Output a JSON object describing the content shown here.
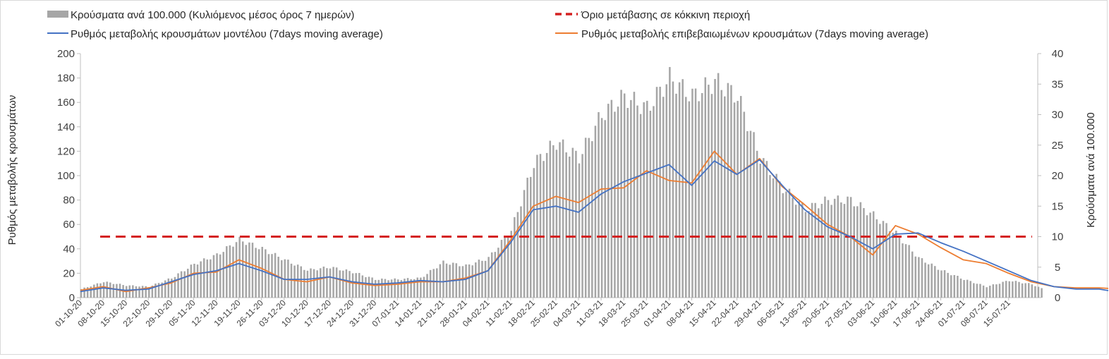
{
  "chart_data": {
    "type": "bar+line",
    "title": "",
    "left_axis": {
      "label": "Ρυθμός μεταβολής κρουσμάτων",
      "ylim": [
        0,
        200
      ],
      "ticks": [
        0,
        20,
        40,
        60,
        80,
        100,
        120,
        140,
        160,
        180,
        200
      ]
    },
    "right_axis": {
      "label": "Κρούσματα ανά 100.000",
      "ylim": [
        0,
        40
      ],
      "ticks": [
        0,
        5,
        10,
        15,
        20,
        25,
        30,
        35,
        40
      ]
    },
    "x_tick_labels": [
      "01-10-20",
      "08-10-20",
      "15-10-20",
      "22-10-20",
      "29-10-20",
      "05-11-20",
      "12-11-20",
      "19-11-20",
      "26-11-20",
      "03-12-20",
      "10-12-20",
      "17-12-20",
      "24-12-20",
      "31-12-20",
      "07-01-21",
      "14-01-21",
      "21-01-21",
      "28-01-21",
      "04-02-21",
      "11-02-21",
      "18-02-21",
      "25-02-21",
      "04-03-21",
      "11-03-21",
      "18-03-21",
      "25-03-21",
      "01-04-21",
      "08-04-21",
      "15-04-21",
      "22-04-21",
      "29-04-21",
      "06-05-21",
      "13-05-21",
      "20-05-21",
      "27-05-21",
      "03-06-21",
      "10-06-21",
      "17-06-21",
      "24-06-21",
      "01-07-21",
      "08-07-21",
      "15-07-21"
    ],
    "series_x_unit": "days since 01-10-20",
    "legend": {
      "bars": "Κρούσματα ανά 100.000 (Κυλιόμενος μέσος όρος 7 ημερών)",
      "threshold": "Όριο μετάβασης σε κόκκινη περιοχή",
      "model": "Ρυθμός μεταβολής κρουσμάτων μοντέλου (7days moving average)",
      "confirmed": "Ρυθμός μεταβολής επιβεβαιωμένων κρουσμάτων (7days moving average)"
    },
    "colors": {
      "bars": "#a6a6a6",
      "threshold": "#d42020",
      "model": "#4472c4",
      "confirmed": "#ed7d31"
    },
    "threshold_value": 50,
    "bars_series": {
      "name": "Κρούσματα ανά 100.000 (Κυλιόμενος μέσος όρος 7 ημερών)",
      "axis": "right",
      "points": [
        [
          0,
          1.4
        ],
        [
          7,
          2.6
        ],
        [
          14,
          2.0
        ],
        [
          21,
          1.8
        ],
        [
          28,
          3.2
        ],
        [
          35,
          5.5
        ],
        [
          42,
          7.0
        ],
        [
          49,
          9.5
        ],
        [
          56,
          8.0
        ],
        [
          63,
          6.2
        ],
        [
          70,
          4.5
        ],
        [
          77,
          5.0
        ],
        [
          84,
          4.2
        ],
        [
          91,
          3.0
        ],
        [
          98,
          3.0
        ],
        [
          105,
          3.2
        ],
        [
          112,
          5.8
        ],
        [
          119,
          5.2
        ],
        [
          126,
          6.5
        ],
        [
          133,
          11.0
        ],
        [
          140,
          22.0
        ],
        [
          147,
          25.5
        ],
        [
          154,
          23.0
        ],
        [
          161,
          30.0
        ],
        [
          168,
          33.0
        ],
        [
          175,
          31.0
        ],
        [
          182,
          36.0
        ],
        [
          189,
          33.0
        ],
        [
          196,
          35.5
        ],
        [
          203,
          33.0
        ],
        [
          210,
          23.0
        ],
        [
          217,
          18.0
        ],
        [
          224,
          14.5
        ],
        [
          231,
          16.0
        ],
        [
          238,
          16.0
        ],
        [
          245,
          13.5
        ],
        [
          252,
          10.5
        ],
        [
          259,
          6.5
        ],
        [
          266,
          4.5
        ],
        [
          273,
          3.0
        ],
        [
          280,
          1.8
        ],
        [
          287,
          2.8
        ],
        [
          294,
          2.2
        ],
        [
          297,
          1.5
        ]
      ]
    },
    "model_series": {
      "name": "Ρυθμός μεταβολής κρουσμάτων μοντέλου (7days moving average)",
      "axis": "left",
      "points": [
        [
          0,
          5
        ],
        [
          7,
          8
        ],
        [
          14,
          6
        ],
        [
          21,
          7
        ],
        [
          28,
          13
        ],
        [
          35,
          19
        ],
        [
          42,
          22
        ],
        [
          49,
          28
        ],
        [
          56,
          22
        ],
        [
          63,
          15
        ],
        [
          70,
          15
        ],
        [
          77,
          17
        ],
        [
          84,
          13
        ],
        [
          91,
          11
        ],
        [
          98,
          12
        ],
        [
          105,
          14
        ],
        [
          112,
          13
        ],
        [
          119,
          15
        ],
        [
          126,
          22
        ],
        [
          133,
          45
        ],
        [
          140,
          72
        ],
        [
          147,
          75
        ],
        [
          154,
          70
        ],
        [
          161,
          85
        ],
        [
          168,
          95
        ],
        [
          175,
          102
        ],
        [
          182,
          109
        ],
        [
          189,
          92
        ],
        [
          196,
          112
        ],
        [
          203,
          101
        ],
        [
          210,
          113
        ],
        [
          217,
          92
        ],
        [
          224,
          72
        ],
        [
          231,
          58
        ],
        [
          238,
          50
        ],
        [
          245,
          40
        ],
        [
          252,
          52
        ],
        [
          259,
          53
        ],
        [
          266,
          45
        ],
        [
          273,
          38
        ],
        [
          280,
          30
        ],
        [
          287,
          22
        ],
        [
          294,
          14
        ],
        [
          301,
          9
        ],
        [
          308,
          7
        ],
        [
          315,
          7
        ],
        [
          322,
          4
        ],
        [
          327,
          3
        ]
      ]
    },
    "confirmed_series": {
      "name": "Ρυθμός μεταβολής επιβεβαιωμένων κρουσμάτων (7days moving average)",
      "axis": "left",
      "points": [
        [
          0,
          6
        ],
        [
          7,
          9
        ],
        [
          14,
          5
        ],
        [
          21,
          8
        ],
        [
          28,
          12
        ],
        [
          35,
          20
        ],
        [
          42,
          21
        ],
        [
          49,
          31
        ],
        [
          56,
          24
        ],
        [
          63,
          15
        ],
        [
          70,
          13
        ],
        [
          77,
          17
        ],
        [
          84,
          12
        ],
        [
          91,
          10
        ],
        [
          98,
          11
        ],
        [
          105,
          13
        ],
        [
          112,
          13
        ],
        [
          119,
          16
        ],
        [
          126,
          22
        ],
        [
          133,
          47
        ],
        [
          140,
          75
        ],
        [
          147,
          83
        ],
        [
          154,
          78
        ],
        [
          161,
          89
        ],
        [
          168,
          90
        ],
        [
          175,
          104
        ],
        [
          182,
          96
        ],
        [
          189,
          94
        ],
        [
          196,
          120
        ],
        [
          203,
          101
        ],
        [
          210,
          114
        ],
        [
          217,
          91
        ],
        [
          224,
          76
        ],
        [
          231,
          60
        ],
        [
          238,
          50
        ],
        [
          245,
          35
        ],
        [
          252,
          59
        ],
        [
          259,
          52
        ],
        [
          266,
          41
        ],
        [
          273,
          31
        ],
        [
          280,
          28
        ],
        [
          287,
          20
        ],
        [
          294,
          13
        ],
        [
          301,
          9
        ],
        [
          308,
          8
        ],
        [
          315,
          8
        ],
        [
          322,
          7
        ]
      ]
    }
  }
}
